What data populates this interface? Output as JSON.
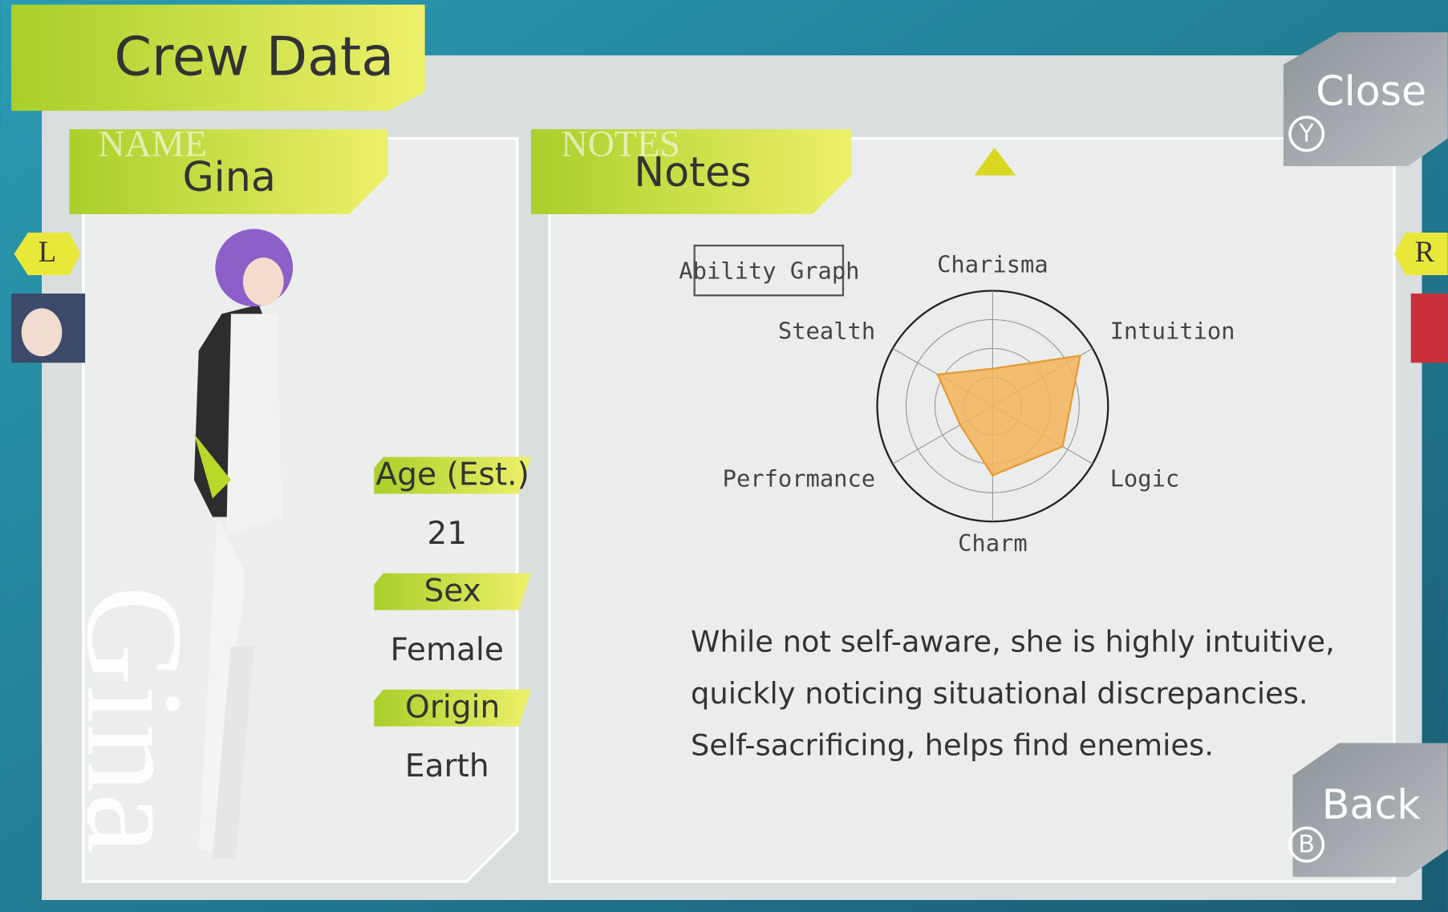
{
  "header": {
    "title": "Crew Data"
  },
  "buttons": {
    "close": {
      "label": "Close",
      "key": "Y"
    },
    "back": {
      "label": "Back",
      "key": "B"
    },
    "prev": "L",
    "next": "R"
  },
  "name_card": {
    "tag": "NAME",
    "name": "Gina",
    "watermark": "Gina",
    "fields": [
      {
        "label": "Age (Est.)",
        "value": "21"
      },
      {
        "label": "Sex",
        "value": "Female"
      },
      {
        "label": "Origin",
        "value": "Earth"
      }
    ]
  },
  "notes": {
    "tag": "NOTES",
    "title": "Notes",
    "lines": [
      "While not self-aware, she is highly intuitive,",
      "quickly noticing situational discrepancies.",
      "Self-sacrificing, helps find enemies."
    ]
  },
  "ability_graph": {
    "type": "radar",
    "title": "Ability Graph",
    "categories": [
      "Charisma",
      "Intuition",
      "Logic",
      "Charm",
      "Performance",
      "Stealth"
    ],
    "values": [
      1.3,
      3.5,
      2.8,
      2.4,
      1.3,
      2.2
    ],
    "color": "#f5b458",
    "rlim": [
      0,
      4
    ],
    "rticks": [
      1,
      2,
      3,
      4
    ]
  }
}
